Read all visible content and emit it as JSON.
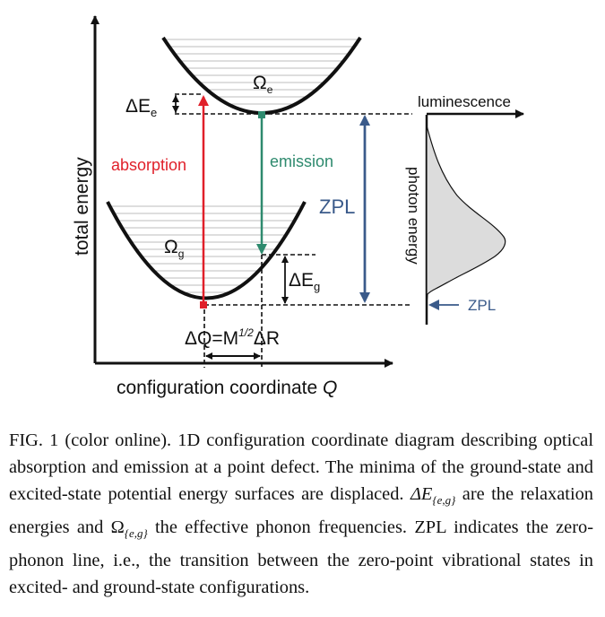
{
  "figure": {
    "axes": {
      "y_label": "total energy",
      "x_label_text": "configuration coordinate ",
      "x_label_var": "Q"
    },
    "surfaces": {
      "excited_sym": "Ω",
      "excited_sub": "e",
      "ground_sym": "Ω",
      "ground_sub": "g"
    },
    "energies": {
      "delta_e_excited": "ΔE",
      "delta_e_excited_sub": "e",
      "delta_e_ground": "ΔE",
      "delta_e_ground_sub": "g"
    },
    "transitions": {
      "absorption": "absorption",
      "emission": "emission",
      "zpl": "ZPL"
    },
    "displacement": {
      "lhs": "ΔQ=M",
      "exp": "1/2",
      "rhs": "ΔR"
    },
    "spectrum": {
      "x_label": "luminescence",
      "y_label": "photon energy",
      "zpl_label": "ZPL"
    },
    "colors": {
      "absorption": "#e0202a",
      "emission": "#2e8a6e",
      "zpl": "#3a5a8a",
      "curve": "#111111",
      "levels": "#bdbdbd"
    }
  },
  "caption": {
    "fig_label": "FIG. 1 (color online).",
    "text_1": " 1D configuration coordinate diagram describing optical absorption and emission at a point defect. The minima of the ground-state and excited-state potential energy surfaces are displaced. ",
    "delta_sym": "ΔE",
    "sub_1": "{e,g}",
    "text_2": " are the relaxation energies and ",
    "omega_sym": "Ω",
    "sub_2": "{e,g}",
    "text_3": " the effective phonon frequencies. ZPL indicates the zero-phonon line, i.e., the transition between the zero-point vibrational states in excited- and ground-state configurations."
  }
}
